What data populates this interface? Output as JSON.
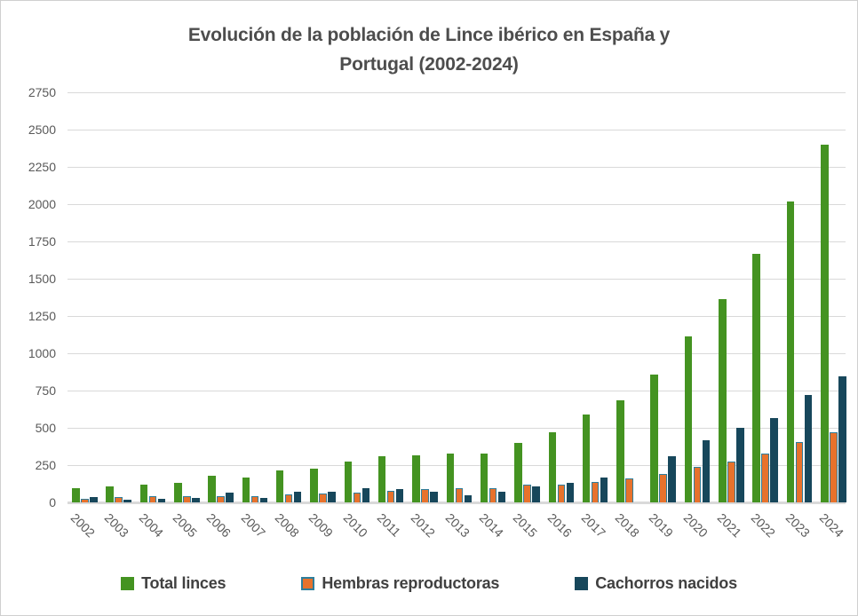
{
  "title": {
    "line1": "Evolución de la población de Lince ibérico en España y",
    "line2": "Portugal (2002-2024)"
  },
  "chart_data": {
    "type": "bar",
    "title": "Evolución de la población de Lince ibérico en España y Portugal (2002-2024)",
    "categories": [
      "2002",
      "2003",
      "2004",
      "2005",
      "2006",
      "2007",
      "2008",
      "2009",
      "2010",
      "2011",
      "2012",
      "2013",
      "2014",
      "2015",
      "2016",
      "2017",
      "2018",
      "2019",
      "2020",
      "2021",
      "2022",
      "2023",
      "2024"
    ],
    "series": [
      {
        "name": "Total linces",
        "color": "#449321",
        "values": [
          94,
          106,
          122,
          130,
          177,
          165,
          212,
          226,
          275,
          310,
          313,
          330,
          325,
          397,
          473,
          589,
          686,
          855,
          1111,
          1365,
          1668,
          2021,
          2401
        ]
      },
      {
        "name": "Hembras reproductoras",
        "color": "#E7722C",
        "border_color": "#2E7E9C",
        "values": [
          27,
          38,
          40,
          43,
          40,
          40,
          51,
          57,
          65,
          78,
          87,
          96,
          95,
          120,
          120,
          136,
          160,
          190,
          237,
          277,
          325,
          406,
          470
        ]
      },
      {
        "name": "Cachorros nacidos",
        "color": "#17475B",
        "values": [
          36,
          16,
          25,
          30,
          65,
          29,
          74,
          73,
          93,
          90,
          73,
          47,
          69,
          110,
          133,
          168,
          0,
          311,
          415,
          501,
          564,
          722,
          848
        ]
      }
    ],
    "xlabel": "",
    "ylabel": "",
    "ylim": [
      0,
      2750
    ],
    "yticks": [
      0,
      250,
      500,
      750,
      1000,
      1250,
      1500,
      1750,
      2000,
      2250,
      2500,
      2750
    ],
    "grid": true,
    "legend_position": "bottom",
    "grid_color": "#D9D9D9",
    "tick_label_color": "#595959",
    "title_color": "#4D4D4D"
  }
}
